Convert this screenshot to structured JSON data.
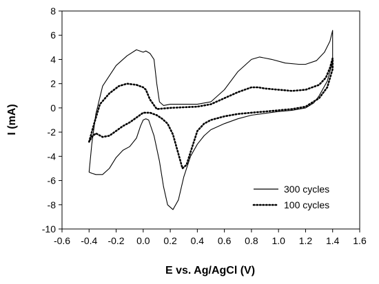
{
  "chart_data": {
    "type": "line",
    "title": "",
    "xlabel": "E vs. Ag/AgCl (V)",
    "ylabel": "I (mA)",
    "xlim": [
      -0.6,
      1.6
    ],
    "ylim": [
      -10,
      8
    ],
    "xticks": [
      -0.6,
      -0.4,
      -0.2,
      0.0,
      0.2,
      0.4,
      0.6,
      0.8,
      1.0,
      1.2,
      1.4,
      1.6
    ],
    "xtick_labels": [
      "-0.6",
      "-0.4",
      "-0.2",
      "0.0",
      "0.2",
      "0.4",
      "0.6",
      "0.8",
      "1.0",
      "1.2",
      "1.4",
      "1.6"
    ],
    "yticks": [
      -10,
      -8,
      -6,
      -4,
      -2,
      0,
      2,
      4,
      6,
      8
    ],
    "ytick_labels": [
      "-10",
      "-8",
      "-6",
      "-4",
      "-2",
      "0",
      "2",
      "4",
      "6",
      "8"
    ],
    "grid": false,
    "legend_position": "bottom-right",
    "series": [
      {
        "name": "300 cycles",
        "line_style": "solid",
        "color": "#000000",
        "x": [
          -0.4,
          -0.38,
          -0.35,
          -0.3,
          -0.2,
          -0.12,
          -0.05,
          0.0,
          0.02,
          0.05,
          0.08,
          0.1,
          0.12,
          0.15,
          0.2,
          0.3,
          0.4,
          0.5,
          0.6,
          0.7,
          0.8,
          0.86,
          0.95,
          1.05,
          1.15,
          1.2,
          1.28,
          1.34,
          1.38,
          1.4,
          1.4,
          1.36,
          1.3,
          1.26,
          1.2,
          1.1,
          1.0,
          0.9,
          0.8,
          0.7,
          0.6,
          0.5,
          0.45,
          0.4,
          0.35,
          0.3,
          0.26,
          0.22,
          0.18,
          0.15,
          0.12,
          0.08,
          0.04,
          0.02,
          0.0,
          -0.02,
          -0.05,
          -0.1,
          -0.15,
          -0.2,
          -0.25,
          -0.3,
          -0.35,
          -0.38,
          -0.4
        ],
        "y": [
          -5.3,
          -3.0,
          -0.5,
          1.8,
          3.5,
          4.3,
          4.8,
          4.6,
          4.7,
          4.5,
          4.0,
          2.0,
          0.5,
          0.2,
          0.3,
          0.3,
          0.3,
          0.5,
          1.5,
          3.0,
          4.0,
          4.2,
          4.0,
          3.7,
          3.6,
          3.6,
          3.9,
          4.6,
          5.5,
          6.4,
          3.8,
          2.2,
          1.0,
          0.4,
          0.0,
          -0.2,
          -0.3,
          -0.45,
          -0.6,
          -0.9,
          -1.3,
          -1.8,
          -2.3,
          -3.0,
          -4.0,
          -5.7,
          -7.6,
          -8.4,
          -8.0,
          -6.5,
          -4.4,
          -2.3,
          -1.0,
          -0.9,
          -1.0,
          -1.5,
          -2.5,
          -3.2,
          -3.5,
          -4.1,
          -5.0,
          -5.5,
          -5.5,
          -5.4,
          -5.3
        ]
      },
      {
        "name": "100 cycles",
        "line_style": "dotted",
        "color": "#000000",
        "x": [
          -0.4,
          -0.36,
          -0.32,
          -0.25,
          -0.18,
          -0.12,
          -0.05,
          0.0,
          0.02,
          0.05,
          0.1,
          0.2,
          0.3,
          0.4,
          0.5,
          0.6,
          0.7,
          0.8,
          0.85,
          0.9,
          1.0,
          1.1,
          1.2,
          1.3,
          1.35,
          1.38,
          1.4,
          1.4,
          1.36,
          1.3,
          1.2,
          1.1,
          1.0,
          0.9,
          0.8,
          0.7,
          0.6,
          0.5,
          0.45,
          0.4,
          0.36,
          0.32,
          0.29,
          0.26,
          0.22,
          0.18,
          0.14,
          0.1,
          0.05,
          0.0,
          -0.05,
          -0.1,
          -0.15,
          -0.2,
          -0.25,
          -0.3,
          -0.35,
          -0.38,
          -0.4
        ],
        "y": [
          -2.8,
          -1.2,
          0.3,
          1.2,
          1.8,
          2.0,
          1.9,
          1.7,
          1.5,
          0.7,
          -0.1,
          0.0,
          0.05,
          0.1,
          0.3,
          0.8,
          1.3,
          1.7,
          1.7,
          1.6,
          1.5,
          1.4,
          1.5,
          1.9,
          2.5,
          3.3,
          4.1,
          3.2,
          1.7,
          0.8,
          0.1,
          -0.1,
          -0.2,
          -0.3,
          -0.4,
          -0.5,
          -0.7,
          -1.0,
          -1.3,
          -1.9,
          -3.3,
          -4.7,
          -5.0,
          -3.8,
          -2.2,
          -1.3,
          -0.9,
          -0.6,
          -0.4,
          -0.4,
          -0.8,
          -1.2,
          -1.5,
          -1.9,
          -2.3,
          -2.4,
          -2.1,
          -2.4,
          -2.8
        ]
      }
    ]
  }
}
